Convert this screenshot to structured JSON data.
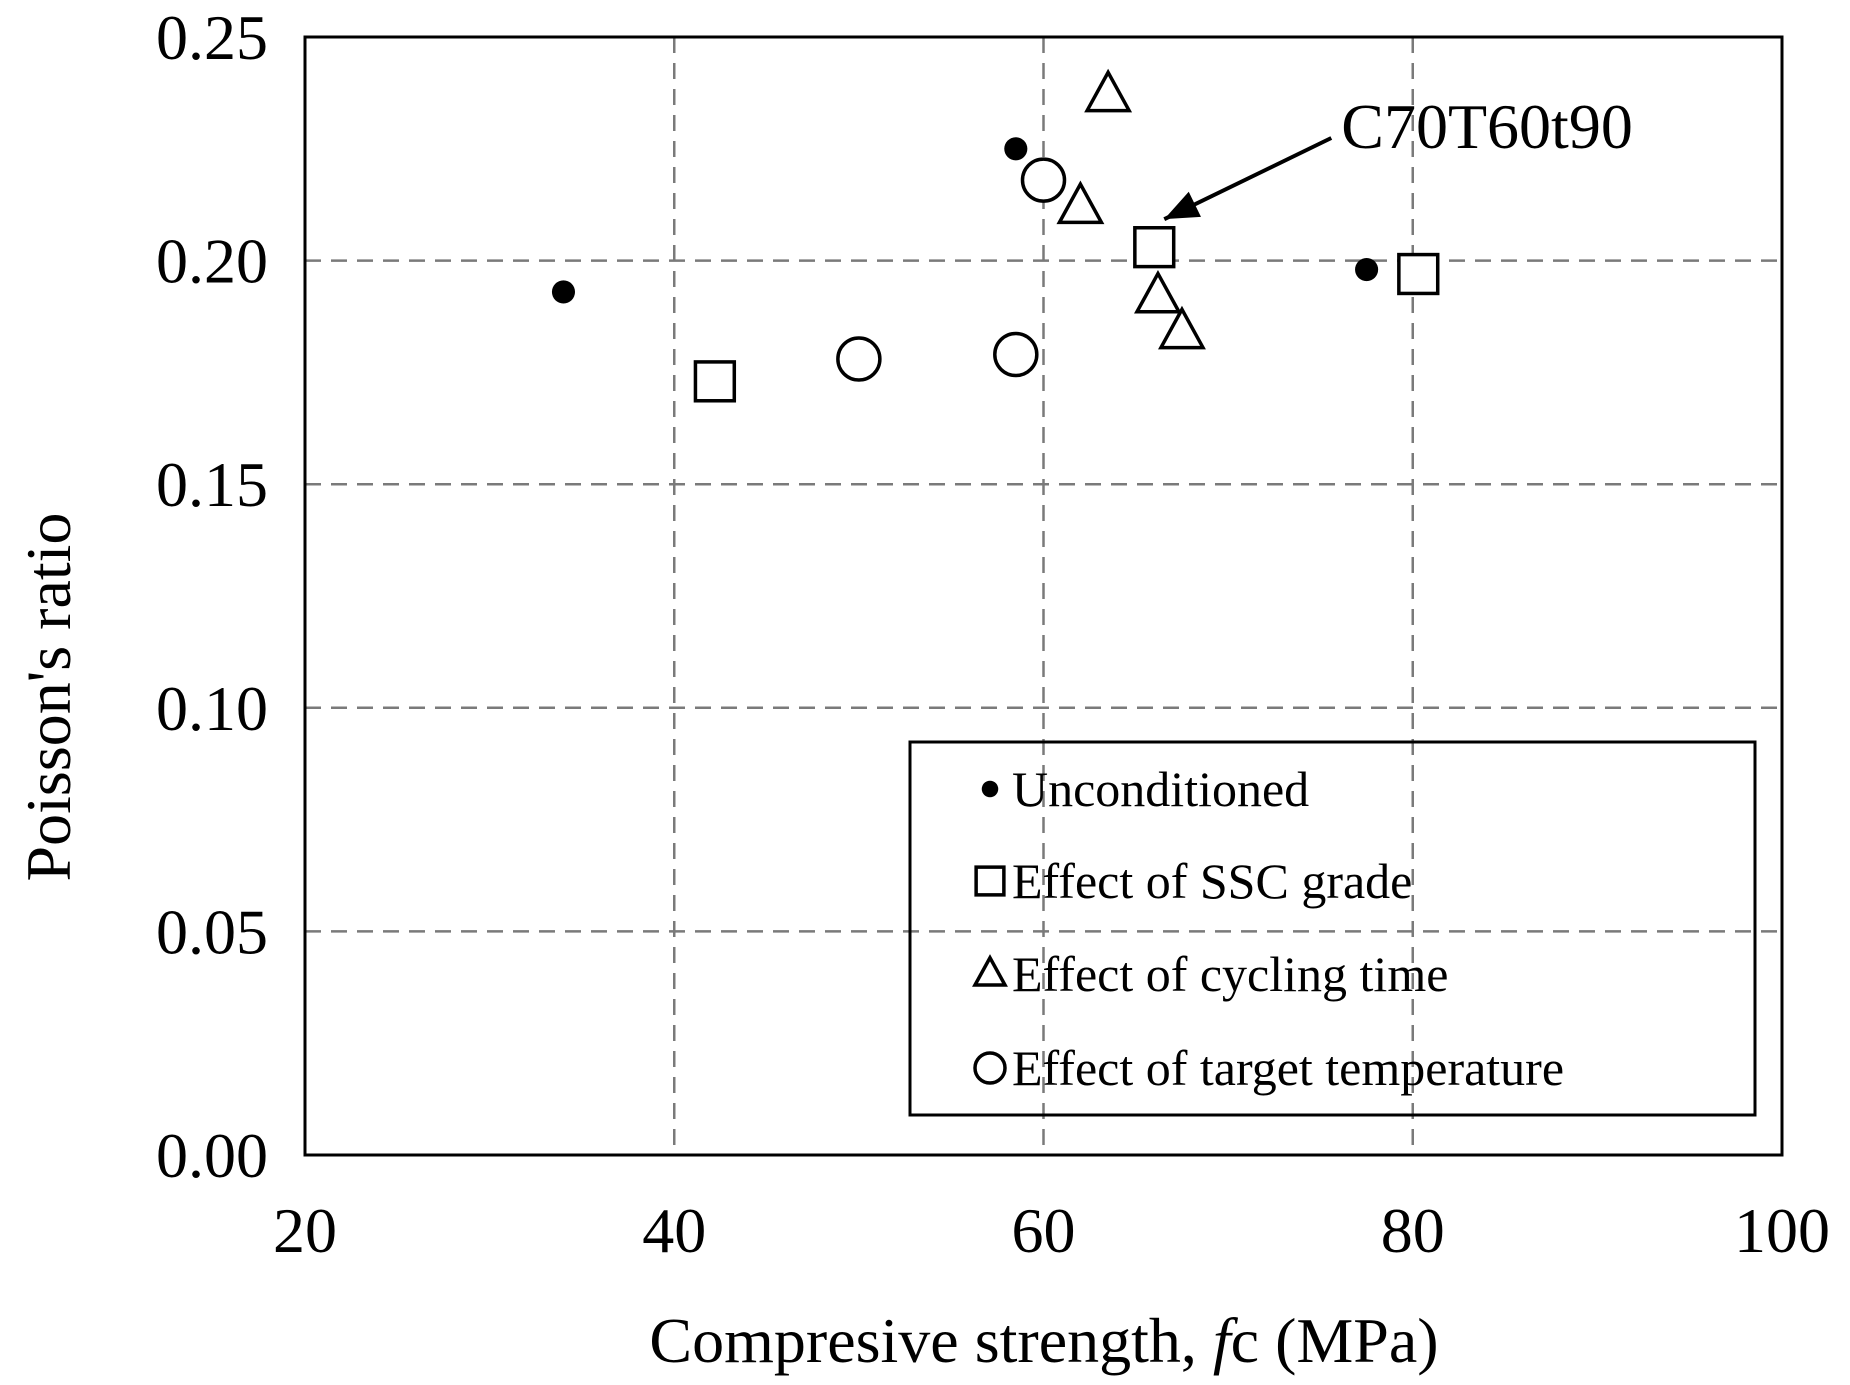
{
  "chart_data": {
    "type": "scatter",
    "xlabel_prefix": "Compresive strength, ",
    "xlabel_symbol": "f",
    "xlabel_subscript": "c",
    "xlabel_suffix": " (MPa)",
    "ylabel": "Poisson's ratio",
    "xlim": [
      20,
      100
    ],
    "ylim": [
      0,
      0.25
    ],
    "x_ticks": [
      20,
      40,
      60,
      80,
      100
    ],
    "x_tick_labels": [
      "20",
      "40",
      "60",
      "80",
      "100"
    ],
    "y_ticks": [
      0,
      0.05,
      0.1,
      0.15,
      0.2,
      0.25
    ],
    "y_tick_labels": [
      "0.00",
      "0.05",
      "0.10",
      "0.15",
      "0.20",
      "0.25"
    ],
    "grid": true,
    "legend_position": "bottom-right",
    "series": [
      {
        "name": "Unconditioned",
        "marker": "filled-circle",
        "points": [
          [
            34,
            0.193
          ],
          [
            58.5,
            0.225
          ],
          [
            77.5,
            0.198
          ]
        ]
      },
      {
        "name": "Effect of SSC grade",
        "marker": "open-square",
        "points": [
          [
            42.2,
            0.173
          ],
          [
            66,
            0.203
          ],
          [
            80.3,
            0.197
          ]
        ]
      },
      {
        "name": "Effect of cycling time",
        "marker": "open-triangle",
        "points": [
          [
            63.5,
            0.237
          ],
          [
            62,
            0.212
          ],
          [
            66.2,
            0.192
          ],
          [
            67.5,
            0.184
          ]
        ]
      },
      {
        "name": "Effect of target temperature",
        "marker": "open-circle",
        "points": [
          [
            60,
            0.218
          ],
          [
            50,
            0.178
          ],
          [
            58.5,
            0.179
          ]
        ]
      }
    ],
    "annotations": [
      {
        "text": "C70T60t90",
        "x": 66,
        "y": 0.203
      }
    ]
  }
}
